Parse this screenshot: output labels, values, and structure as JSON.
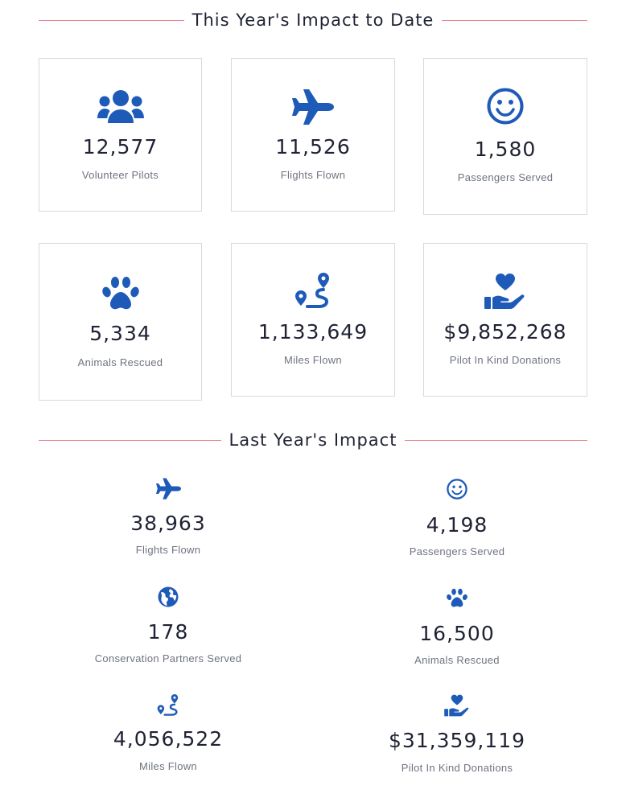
{
  "this_year": {
    "heading": "This Year's Impact to Date",
    "cards": [
      {
        "icon": "users-icon",
        "value": "12,577",
        "label": "Volunteer Pilots"
      },
      {
        "icon": "airplane-icon",
        "value": "11,526",
        "label": "Flights Flown"
      },
      {
        "icon": "smiley-icon",
        "value": "1,580",
        "label": "Passengers Served"
      },
      {
        "icon": "paw-icon",
        "value": "5,334",
        "label": "Animals Rescued"
      },
      {
        "icon": "route-icon",
        "value": "1,133,649",
        "label": "Miles Flown"
      },
      {
        "icon": "hand-heart-icon",
        "value": "$9,852,268",
        "label": "Pilot In Kind Donations"
      }
    ]
  },
  "last_year": {
    "heading": "Last Year's Impact",
    "stats": [
      {
        "icon": "airplane-icon",
        "value": "38,963",
        "label": "Flights Flown"
      },
      {
        "icon": "smiley-icon",
        "value": "4,198",
        "label": "Passengers Served"
      },
      {
        "icon": "globe-icon",
        "value": "178",
        "label": "Conservation Partners Served"
      },
      {
        "icon": "paw-icon",
        "value": "16,500",
        "label": "Animals Rescued"
      },
      {
        "icon": "route-icon",
        "value": "4,056,522",
        "label": "Miles Flown"
      },
      {
        "icon": "hand-heart-icon",
        "value": "$31,359,119",
        "label": "Pilot In Kind Donations"
      }
    ]
  },
  "colors": {
    "accent": "#1e5bb8",
    "rule": "#e8858f",
    "text": "#1f2233",
    "muted": "#6e7380"
  }
}
